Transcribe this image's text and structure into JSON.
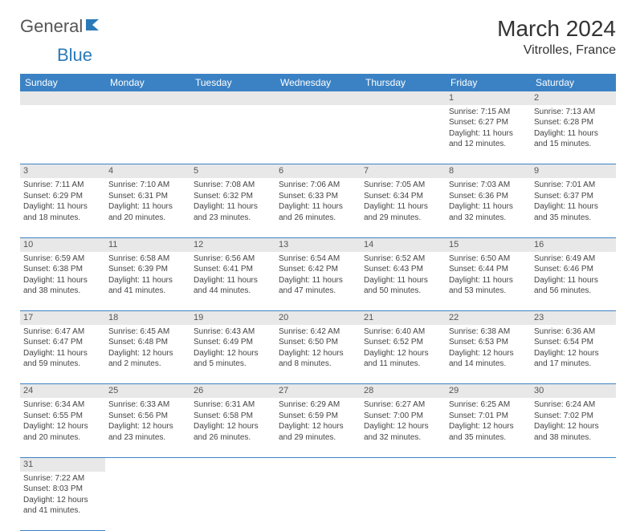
{
  "brand": {
    "part1": "General",
    "part2": "Blue"
  },
  "title": "March 2024",
  "location": "Vitrolles, France",
  "colors": {
    "header_bg": "#3b82c4",
    "header_text": "#ffffff",
    "daynum_bg": "#e8e8e8",
    "border": "#3b82c4",
    "brand_blue": "#2a7ab8",
    "text": "#444444"
  },
  "weekdays": [
    "Sunday",
    "Monday",
    "Tuesday",
    "Wednesday",
    "Thursday",
    "Friday",
    "Saturday"
  ],
  "weeks": [
    [
      null,
      null,
      null,
      null,
      null,
      {
        "n": "1",
        "sunrise": "7:15 AM",
        "sunset": "6:27 PM",
        "dl1": "Daylight: 11 hours",
        "dl2": "and 12 minutes."
      },
      {
        "n": "2",
        "sunrise": "7:13 AM",
        "sunset": "6:28 PM",
        "dl1": "Daylight: 11 hours",
        "dl2": "and 15 minutes."
      }
    ],
    [
      {
        "n": "3",
        "sunrise": "7:11 AM",
        "sunset": "6:29 PM",
        "dl1": "Daylight: 11 hours",
        "dl2": "and 18 minutes."
      },
      {
        "n": "4",
        "sunrise": "7:10 AM",
        "sunset": "6:31 PM",
        "dl1": "Daylight: 11 hours",
        "dl2": "and 20 minutes."
      },
      {
        "n": "5",
        "sunrise": "7:08 AM",
        "sunset": "6:32 PM",
        "dl1": "Daylight: 11 hours",
        "dl2": "and 23 minutes."
      },
      {
        "n": "6",
        "sunrise": "7:06 AM",
        "sunset": "6:33 PM",
        "dl1": "Daylight: 11 hours",
        "dl2": "and 26 minutes."
      },
      {
        "n": "7",
        "sunrise": "7:05 AM",
        "sunset": "6:34 PM",
        "dl1": "Daylight: 11 hours",
        "dl2": "and 29 minutes."
      },
      {
        "n": "8",
        "sunrise": "7:03 AM",
        "sunset": "6:36 PM",
        "dl1": "Daylight: 11 hours",
        "dl2": "and 32 minutes."
      },
      {
        "n": "9",
        "sunrise": "7:01 AM",
        "sunset": "6:37 PM",
        "dl1": "Daylight: 11 hours",
        "dl2": "and 35 minutes."
      }
    ],
    [
      {
        "n": "10",
        "sunrise": "6:59 AM",
        "sunset": "6:38 PM",
        "dl1": "Daylight: 11 hours",
        "dl2": "and 38 minutes."
      },
      {
        "n": "11",
        "sunrise": "6:58 AM",
        "sunset": "6:39 PM",
        "dl1": "Daylight: 11 hours",
        "dl2": "and 41 minutes."
      },
      {
        "n": "12",
        "sunrise": "6:56 AM",
        "sunset": "6:41 PM",
        "dl1": "Daylight: 11 hours",
        "dl2": "and 44 minutes."
      },
      {
        "n": "13",
        "sunrise": "6:54 AM",
        "sunset": "6:42 PM",
        "dl1": "Daylight: 11 hours",
        "dl2": "and 47 minutes."
      },
      {
        "n": "14",
        "sunrise": "6:52 AM",
        "sunset": "6:43 PM",
        "dl1": "Daylight: 11 hours",
        "dl2": "and 50 minutes."
      },
      {
        "n": "15",
        "sunrise": "6:50 AM",
        "sunset": "6:44 PM",
        "dl1": "Daylight: 11 hours",
        "dl2": "and 53 minutes."
      },
      {
        "n": "16",
        "sunrise": "6:49 AM",
        "sunset": "6:46 PM",
        "dl1": "Daylight: 11 hours",
        "dl2": "and 56 minutes."
      }
    ],
    [
      {
        "n": "17",
        "sunrise": "6:47 AM",
        "sunset": "6:47 PM",
        "dl1": "Daylight: 11 hours",
        "dl2": "and 59 minutes."
      },
      {
        "n": "18",
        "sunrise": "6:45 AM",
        "sunset": "6:48 PM",
        "dl1": "Daylight: 12 hours",
        "dl2": "and 2 minutes."
      },
      {
        "n": "19",
        "sunrise": "6:43 AM",
        "sunset": "6:49 PM",
        "dl1": "Daylight: 12 hours",
        "dl2": "and 5 minutes."
      },
      {
        "n": "20",
        "sunrise": "6:42 AM",
        "sunset": "6:50 PM",
        "dl1": "Daylight: 12 hours",
        "dl2": "and 8 minutes."
      },
      {
        "n": "21",
        "sunrise": "6:40 AM",
        "sunset": "6:52 PM",
        "dl1": "Daylight: 12 hours",
        "dl2": "and 11 minutes."
      },
      {
        "n": "22",
        "sunrise": "6:38 AM",
        "sunset": "6:53 PM",
        "dl1": "Daylight: 12 hours",
        "dl2": "and 14 minutes."
      },
      {
        "n": "23",
        "sunrise": "6:36 AM",
        "sunset": "6:54 PM",
        "dl1": "Daylight: 12 hours",
        "dl2": "and 17 minutes."
      }
    ],
    [
      {
        "n": "24",
        "sunrise": "6:34 AM",
        "sunset": "6:55 PM",
        "dl1": "Daylight: 12 hours",
        "dl2": "and 20 minutes."
      },
      {
        "n": "25",
        "sunrise": "6:33 AM",
        "sunset": "6:56 PM",
        "dl1": "Daylight: 12 hours",
        "dl2": "and 23 minutes."
      },
      {
        "n": "26",
        "sunrise": "6:31 AM",
        "sunset": "6:58 PM",
        "dl1": "Daylight: 12 hours",
        "dl2": "and 26 minutes."
      },
      {
        "n": "27",
        "sunrise": "6:29 AM",
        "sunset": "6:59 PM",
        "dl1": "Daylight: 12 hours",
        "dl2": "and 29 minutes."
      },
      {
        "n": "28",
        "sunrise": "6:27 AM",
        "sunset": "7:00 PM",
        "dl1": "Daylight: 12 hours",
        "dl2": "and 32 minutes."
      },
      {
        "n": "29",
        "sunrise": "6:25 AM",
        "sunset": "7:01 PM",
        "dl1": "Daylight: 12 hours",
        "dl2": "and 35 minutes."
      },
      {
        "n": "30",
        "sunrise": "6:24 AM",
        "sunset": "7:02 PM",
        "dl1": "Daylight: 12 hours",
        "dl2": "and 38 minutes."
      }
    ],
    [
      {
        "n": "31",
        "sunrise": "7:22 AM",
        "sunset": "8:03 PM",
        "dl1": "Daylight: 12 hours",
        "dl2": "and 41 minutes."
      },
      null,
      null,
      null,
      null,
      null,
      null
    ]
  ],
  "labels": {
    "sunrise": "Sunrise:",
    "sunset": "Sunset:"
  }
}
